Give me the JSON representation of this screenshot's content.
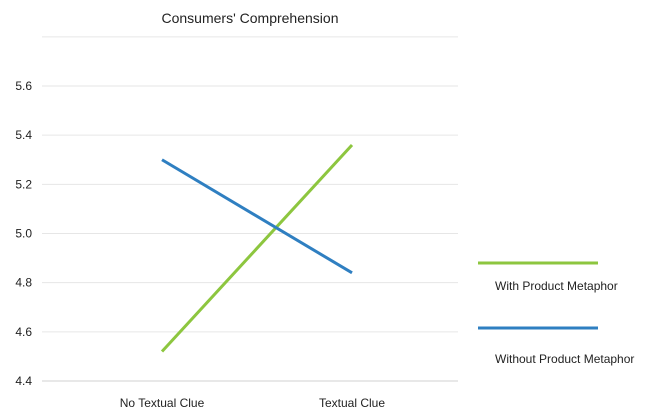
{
  "chart_data": {
    "type": "line",
    "title": "Consumers' Comprehension",
    "xlabel": "",
    "ylabel": "",
    "categories": [
      "No Textual Clue",
      "Textual Clue"
    ],
    "ylim": [
      4.4,
      5.6
    ],
    "yticks": [
      "4.4",
      "4.6",
      "4.8",
      "5.0",
      "5.2",
      "5.4",
      "5.6"
    ],
    "grid": true,
    "legend_position": "right",
    "series": [
      {
        "name": "With Product Metaphor",
        "values": [
          4.52,
          5.36
        ],
        "color": "#8dc63f"
      },
      {
        "name": "Without Product Metaphor",
        "values": [
          5.3,
          4.84
        ],
        "color": "#2f7fc1"
      }
    ]
  }
}
